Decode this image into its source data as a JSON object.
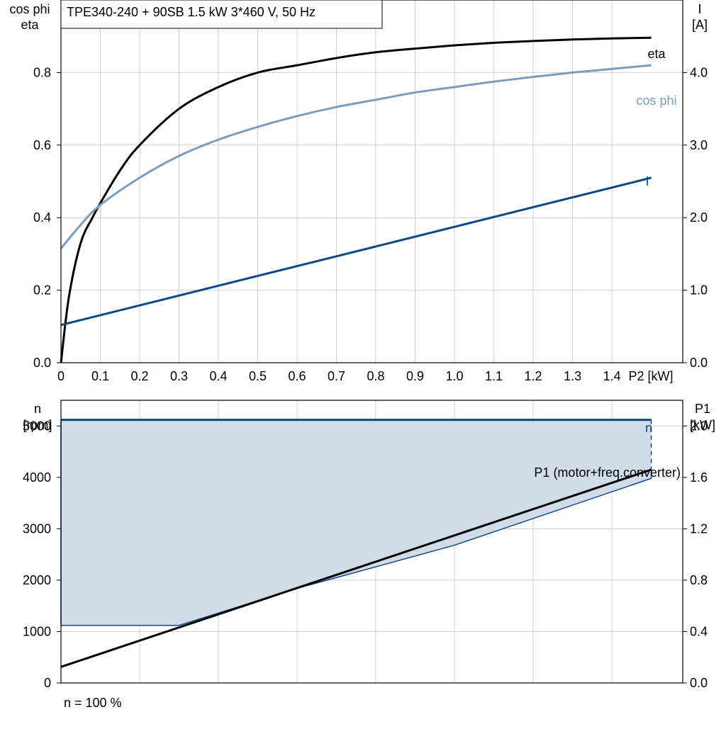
{
  "title_box": "TPE340-240 + 90SB   1.5 kW   3*460 V, 50 Hz",
  "footer": "n = 100 %",
  "colors": {
    "eta": "#000000",
    "cosphi": "#7a9cbe",
    "current": "#0b4a86",
    "area_fill": "#d1dce8",
    "grid": "#d0d0d0"
  },
  "chart_data": [
    {
      "type": "line",
      "ylabel_left": [
        "cos phi",
        "eta"
      ],
      "ylabel_right": [
        "I",
        "[A]"
      ],
      "xlabel": "P2 [kW]",
      "xlim": [
        0,
        1.58
      ],
      "ylim_left": [
        0,
        1.0
      ],
      "ylim_right": [
        0,
        5.0
      ],
      "x_ticks": [
        "0",
        "0.1",
        "0.2",
        "0.3",
        "0.4",
        "0.5",
        "0.6",
        "0.7",
        "0.8",
        "0.9",
        "1.0",
        "1.1",
        "1.2",
        "1.3",
        "1.4"
      ],
      "y_ticks_left": [
        "0.0",
        "0.2",
        "0.4",
        "0.6",
        "0.8"
      ],
      "y_ticks_right": [
        "0.0",
        "1.0",
        "2.0",
        "3.0",
        "4.0"
      ],
      "grid": true,
      "series": [
        {
          "name": "eta",
          "axis": "left",
          "color": "#000000",
          "x": [
            0,
            0.02,
            0.05,
            0.08,
            0.1,
            0.15,
            0.2,
            0.3,
            0.4,
            0.5,
            0.6,
            0.7,
            0.8,
            0.9,
            1.0,
            1.1,
            1.2,
            1.3,
            1.4,
            1.5
          ],
          "y": [
            0,
            0.18,
            0.33,
            0.4,
            0.44,
            0.53,
            0.6,
            0.7,
            0.76,
            0.8,
            0.82,
            0.84,
            0.856,
            0.866,
            0.875,
            0.882,
            0.887,
            0.891,
            0.894,
            0.896
          ]
        },
        {
          "name": "cos phi",
          "axis": "left",
          "color": "#7a9cbe",
          "x": [
            0,
            0.05,
            0.1,
            0.2,
            0.3,
            0.4,
            0.5,
            0.6,
            0.7,
            0.8,
            0.9,
            1.0,
            1.1,
            1.2,
            1.3,
            1.4,
            1.5
          ],
          "y": [
            0.315,
            0.38,
            0.435,
            0.51,
            0.57,
            0.615,
            0.65,
            0.68,
            0.705,
            0.725,
            0.745,
            0.76,
            0.775,
            0.788,
            0.8,
            0.81,
            0.82
          ]
        },
        {
          "name": "I",
          "axis": "right",
          "color": "#0b4a86",
          "x": [
            0,
            1.5
          ],
          "y": [
            0.52,
            2.55
          ]
        }
      ]
    },
    {
      "type": "area",
      "ylabel_left": [
        "n",
        "[rpm]"
      ],
      "ylabel_right": [
        "P1",
        "[kW]"
      ],
      "xlim": [
        0,
        1.58
      ],
      "ylim_left": [
        0,
        5500
      ],
      "ylim_right": [
        0,
        2.2
      ],
      "y_ticks_left": [
        "0",
        "1000",
        "2000",
        "3000",
        "4000",
        "5000"
      ],
      "y_ticks_right": [
        "0.0",
        "0.4",
        "0.8",
        "1.2",
        "1.6",
        "2.0"
      ],
      "grid": true,
      "area": {
        "name": "n",
        "color": "#0b4a86",
        "upper": {
          "x": [
            0,
            1.5
          ],
          "y": [
            5120,
            5120
          ]
        },
        "lower": {
          "x": [
            0,
            0.3,
            0.6,
            1.0,
            1.5
          ],
          "y": [
            1120,
            1120,
            1840,
            2680,
            3980
          ]
        }
      },
      "series": [
        {
          "name": "P1 (motor+freq.converter)",
          "axis": "right",
          "color": "#000000",
          "x": [
            0,
            1.5
          ],
          "y": [
            0.125,
            1.66
          ]
        }
      ]
    }
  ]
}
